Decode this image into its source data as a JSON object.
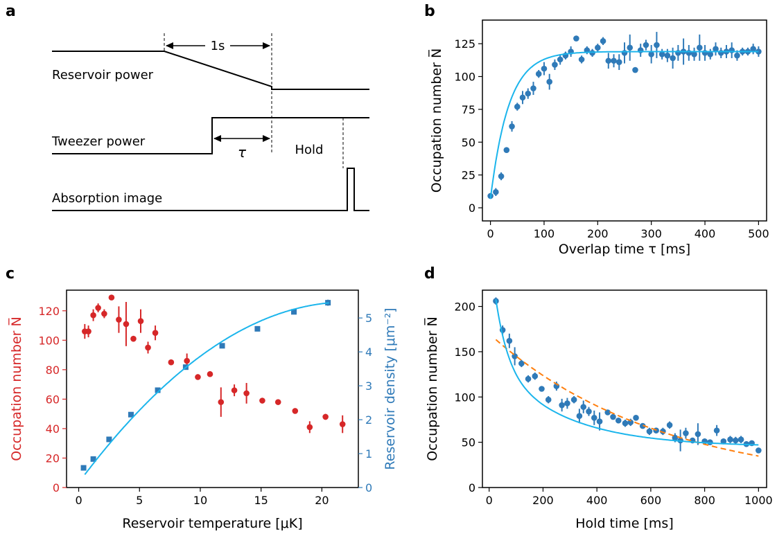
{
  "panel_labels": [
    "a",
    "b",
    "c",
    "d"
  ],
  "timing_diagram": {
    "reservoir_label": "Reservoir power",
    "tweezer_label": "Tweezer power",
    "image_label": "Absorption image",
    "ramp_duration_label": "1s",
    "overlap_label": "τ",
    "hold_label": "Hold"
  },
  "colors": {
    "blue_data": "#2f7ab8",
    "cyan_fit": "#1bb5ec",
    "red_data": "#d62728",
    "red_axis": "#d62728",
    "blue_axis": "#2f7ab8",
    "orange_fit": "#ff7f0e",
    "black": "#000000"
  },
  "chart_data": [
    {
      "panel": "b",
      "type": "scatter",
      "xlabel": "Overlap time τ [ms]",
      "ylabel": "Occupation number N̅",
      "xlim": [
        -15,
        515
      ],
      "ylim": [
        -10,
        143
      ],
      "xticks": [
        0,
        100,
        200,
        300,
        400,
        500
      ],
      "yticks": [
        0,
        25,
        50,
        75,
        100,
        125
      ],
      "series": [
        {
          "kind": "errorbar",
          "color": "#2f7ab8",
          "points": [
            [
              0,
              9,
              2
            ],
            [
              10,
              12,
              3
            ],
            [
              20,
              24,
              3
            ],
            [
              30,
              44,
              2
            ],
            [
              40,
              62,
              4
            ],
            [
              50,
              77,
              3
            ],
            [
              60,
              84,
              5
            ],
            [
              70,
              87,
              4
            ],
            [
              80,
              91,
              5
            ],
            [
              90,
              102,
              3
            ],
            [
              100,
              106,
              5
            ],
            [
              110,
              96,
              6
            ],
            [
              120,
              109,
              4
            ],
            [
              130,
              113,
              4
            ],
            [
              140,
              116,
              3
            ],
            [
              150,
              119,
              4
            ],
            [
              160,
              129,
              2
            ],
            [
              170,
              113,
              3
            ],
            [
              180,
              120,
              3
            ],
            [
              190,
              118,
              3
            ],
            [
              200,
              122,
              3
            ],
            [
              210,
              127,
              3
            ],
            [
              220,
              112,
              6
            ],
            [
              230,
              112,
              5
            ],
            [
              240,
              111,
              6
            ],
            [
              250,
              118,
              8
            ],
            [
              260,
              122,
              10
            ],
            [
              270,
              105,
              2
            ],
            [
              280,
              120,
              5
            ],
            [
              290,
              124,
              4
            ],
            [
              300,
              117,
              7
            ],
            [
              310,
              124,
              10
            ],
            [
              320,
              117,
              4
            ],
            [
              330,
              116,
              5
            ],
            [
              340,
              114,
              8
            ],
            [
              350,
              118,
              6
            ],
            [
              360,
              119,
              10
            ],
            [
              370,
              118,
              6
            ],
            [
              380,
              117,
              5
            ],
            [
              390,
              122,
              10
            ],
            [
              400,
              118,
              6
            ],
            [
              410,
              117,
              4
            ],
            [
              420,
              121,
              5
            ],
            [
              430,
              118,
              4
            ],
            [
              440,
              119,
              5
            ],
            [
              450,
              120,
              6
            ],
            [
              460,
              116,
              4
            ],
            [
              470,
              119,
              3
            ],
            [
              480,
              119,
              3
            ],
            [
              490,
              121,
              4
            ],
            [
              500,
              119,
              4
            ]
          ]
        },
        {
          "kind": "fit",
          "color": "#1bb5ec",
          "model": "N = 119(1 - exp(-(t+2)/34))",
          "x_range": [
            0,
            500
          ]
        }
      ]
    },
    {
      "panel": "c",
      "type": "scatter",
      "xlabel": "Reservoir temperature [μK]",
      "ylabel": "Occupation number N̅",
      "ylabel_right": "Reservoir density [μm⁻²]",
      "xlim": [
        -1,
        23
      ],
      "ylim": [
        0,
        134
      ],
      "ylim_right": [
        0,
        5.82
      ],
      "xticks": [
        0,
        5,
        10,
        15,
        20
      ],
      "yticks": [
        0,
        20,
        40,
        60,
        80,
        100,
        120
      ],
      "yticks_right": [
        0,
        1,
        2,
        3,
        4,
        5
      ],
      "series": [
        {
          "kind": "errorbar",
          "axis": "left",
          "color": "#d62728",
          "points": [
            [
              0.5,
              106,
              5
            ],
            [
              0.8,
              106,
              4
            ],
            [
              1.2,
              117,
              4
            ],
            [
              1.6,
              122,
              3
            ],
            [
              2.1,
              118,
              3
            ],
            [
              2.7,
              129,
              1
            ],
            [
              3.3,
              114,
              9
            ],
            [
              3.9,
              111,
              15
            ],
            [
              4.5,
              101,
              2
            ],
            [
              5.1,
              113,
              8
            ],
            [
              5.7,
              95,
              4
            ],
            [
              6.3,
              105,
              5
            ],
            [
              7.6,
              85,
              1
            ],
            [
              8.9,
              86,
              5
            ],
            [
              9.8,
              75,
              1
            ],
            [
              10.8,
              77,
              1
            ],
            [
              11.7,
              58,
              10
            ],
            [
              12.8,
              66,
              4
            ],
            [
              13.8,
              64,
              7
            ],
            [
              15.1,
              59,
              1
            ],
            [
              16.4,
              58,
              1
            ],
            [
              17.8,
              52,
              1
            ],
            [
              19.0,
              41,
              4
            ],
            [
              20.3,
              48,
              2
            ],
            [
              21.7,
              43,
              6
            ]
          ]
        },
        {
          "kind": "errorbar",
          "axis": "right",
          "color": "#2f7ab8",
          "marker": "square",
          "points": [
            [
              0.4,
              0.58,
              0.03
            ],
            [
              1.2,
              0.84,
              0.03
            ],
            [
              2.5,
              1.42,
              0.03
            ],
            [
              4.3,
              2.15,
              0.03
            ],
            [
              6.5,
              2.87,
              0.05
            ],
            [
              8.8,
              3.55,
              0.05
            ],
            [
              11.8,
              4.18,
              0.07
            ],
            [
              14.7,
              4.68,
              0.06
            ],
            [
              17.7,
              5.18,
              0.07
            ],
            [
              20.5,
              5.45,
              0.09
            ]
          ]
        },
        {
          "kind": "fit",
          "axis": "right",
          "color": "#1bb5ec",
          "model": "quadratic",
          "x_range": [
            0.5,
            20.6
          ]
        }
      ]
    },
    {
      "panel": "d",
      "type": "scatter",
      "xlabel": "Hold time [ms]",
      "ylabel": "Occupation number N̅",
      "xlim": [
        -25,
        1030
      ],
      "ylim": [
        0,
        218
      ],
      "xticks": [
        0,
        200,
        400,
        600,
        800,
        1000
      ],
      "yticks": [
        0,
        50,
        100,
        150,
        200
      ],
      "series": [
        {
          "kind": "errorbar",
          "color": "#2f7ab8",
          "points": [
            [
              25,
              206,
              4
            ],
            [
              50,
              174,
              5
            ],
            [
              75,
              162,
              8
            ],
            [
              95,
              145,
              10
            ],
            [
              120,
              137,
              4
            ],
            [
              145,
              120,
              4
            ],
            [
              170,
              123,
              4
            ],
            [
              195,
              109,
              3
            ],
            [
              220,
              97,
              4
            ],
            [
              250,
              112,
              5
            ],
            [
              270,
              91,
              7
            ],
            [
              290,
              93,
              6
            ],
            [
              315,
              97,
              4
            ],
            [
              335,
              79,
              8
            ],
            [
              350,
              89,
              7
            ],
            [
              370,
              84,
              5
            ],
            [
              390,
              77,
              8
            ],
            [
              410,
              73,
              10
            ],
            [
              440,
              83,
              3
            ],
            [
              460,
              78,
              3
            ],
            [
              480,
              74,
              3
            ],
            [
              505,
              71,
              4
            ],
            [
              525,
              72,
              4
            ],
            [
              545,
              77,
              3
            ],
            [
              570,
              68,
              3
            ],
            [
              595,
              62,
              4
            ],
            [
              620,
              63,
              3
            ],
            [
              645,
              62,
              4
            ],
            [
              670,
              69,
              4
            ],
            [
              690,
              55,
              5
            ],
            [
              710,
              52,
              12
            ],
            [
              730,
              60,
              6
            ],
            [
              755,
              52,
              3
            ],
            [
              775,
              59,
              12
            ],
            [
              800,
              51,
              3
            ],
            [
              820,
              50,
              3
            ],
            [
              845,
              63,
              6
            ],
            [
              870,
              51,
              3
            ],
            [
              895,
              53,
              4
            ],
            [
              915,
              52,
              4
            ],
            [
              935,
              53,
              4
            ],
            [
              955,
              48,
              3
            ],
            [
              975,
              49,
              3
            ],
            [
              1000,
              41,
              3
            ]
          ]
        },
        {
          "kind": "fit",
          "color": "#1bb5ec",
          "dashed": false,
          "model": "45 + 145 exp(-(t-25)/150) + ...",
          "x_range": [
            25,
            1000
          ]
        },
        {
          "kind": "fit",
          "color": "#ff7f0e",
          "dashed": true,
          "model": "170 exp(-t/630)",
          "x_range": [
            25,
            1000
          ]
        }
      ]
    }
  ]
}
